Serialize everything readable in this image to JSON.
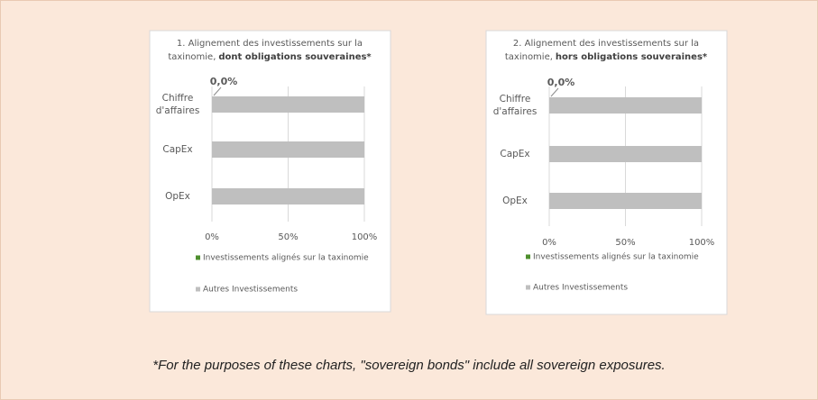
{
  "chart_data": [
    {
      "type": "bar",
      "orientation": "horizontal",
      "stacked": true,
      "title": {
        "line1": "1. Alignement des investissements sur la",
        "line2": "taxinomie,",
        "bold": "dont obligations souveraines*"
      },
      "categories": [
        "Chiffre d'affaires",
        "CapEx",
        "OpEx"
      ],
      "series": [
        {
          "name": "Investissements alignés sur la taxinomie",
          "color": "#4e8f2e",
          "values": [
            0,
            0,
            0
          ],
          "value_labels": [
            "0,0%",
            null,
            null
          ]
        },
        {
          "name": "Autres Investissements",
          "color": "#bfbfbf",
          "values": [
            100,
            100,
            100
          ]
        }
      ],
      "xlim": [
        0,
        100
      ],
      "xticks": [
        {
          "value": 0,
          "label": "0%"
        },
        {
          "value": 50,
          "label": "50%"
        },
        {
          "value": 100,
          "label": "100%"
        }
      ],
      "grid": true,
      "legend": "bottom"
    },
    {
      "type": "bar",
      "orientation": "horizontal",
      "stacked": true,
      "title": {
        "line1": "2. Alignement des investissements sur la",
        "line2": "taxinomie,",
        "bold": "hors obligations souveraines*"
      },
      "categories": [
        "Chiffre d'affaires",
        "CapEx",
        "OpEx"
      ],
      "series": [
        {
          "name": "Investissements alignés sur la taxinomie",
          "color": "#4e8f2e",
          "values": [
            0,
            0,
            0
          ],
          "value_labels": [
            "0,0%",
            null,
            null
          ]
        },
        {
          "name": "Autres Investissements",
          "color": "#bfbfbf",
          "values": [
            100,
            100,
            100
          ]
        }
      ],
      "xlim": [
        0,
        100
      ],
      "xticks": [
        {
          "value": 0,
          "label": "0%"
        },
        {
          "value": 50,
          "label": "50%"
        },
        {
          "value": 100,
          "label": "100%"
        }
      ],
      "grid": true,
      "legend": "bottom"
    }
  ],
  "footnote": "*For the purposes of these charts, \"sovereign bonds\" include all sovereign exposures."
}
